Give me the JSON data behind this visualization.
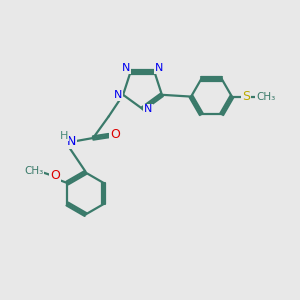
{
  "background_color": "#e8e8e8",
  "bond_color": "#3a7a6a",
  "n_color": "#0000ee",
  "o_color": "#dd0000",
  "s_color": "#bbaa00",
  "h_color": "#4a8a7a",
  "line_width": 1.6,
  "figsize": [
    3.0,
    3.0
  ],
  "dpi": 100,
  "xlim": [
    0,
    10
  ],
  "ylim": [
    0,
    10
  ]
}
